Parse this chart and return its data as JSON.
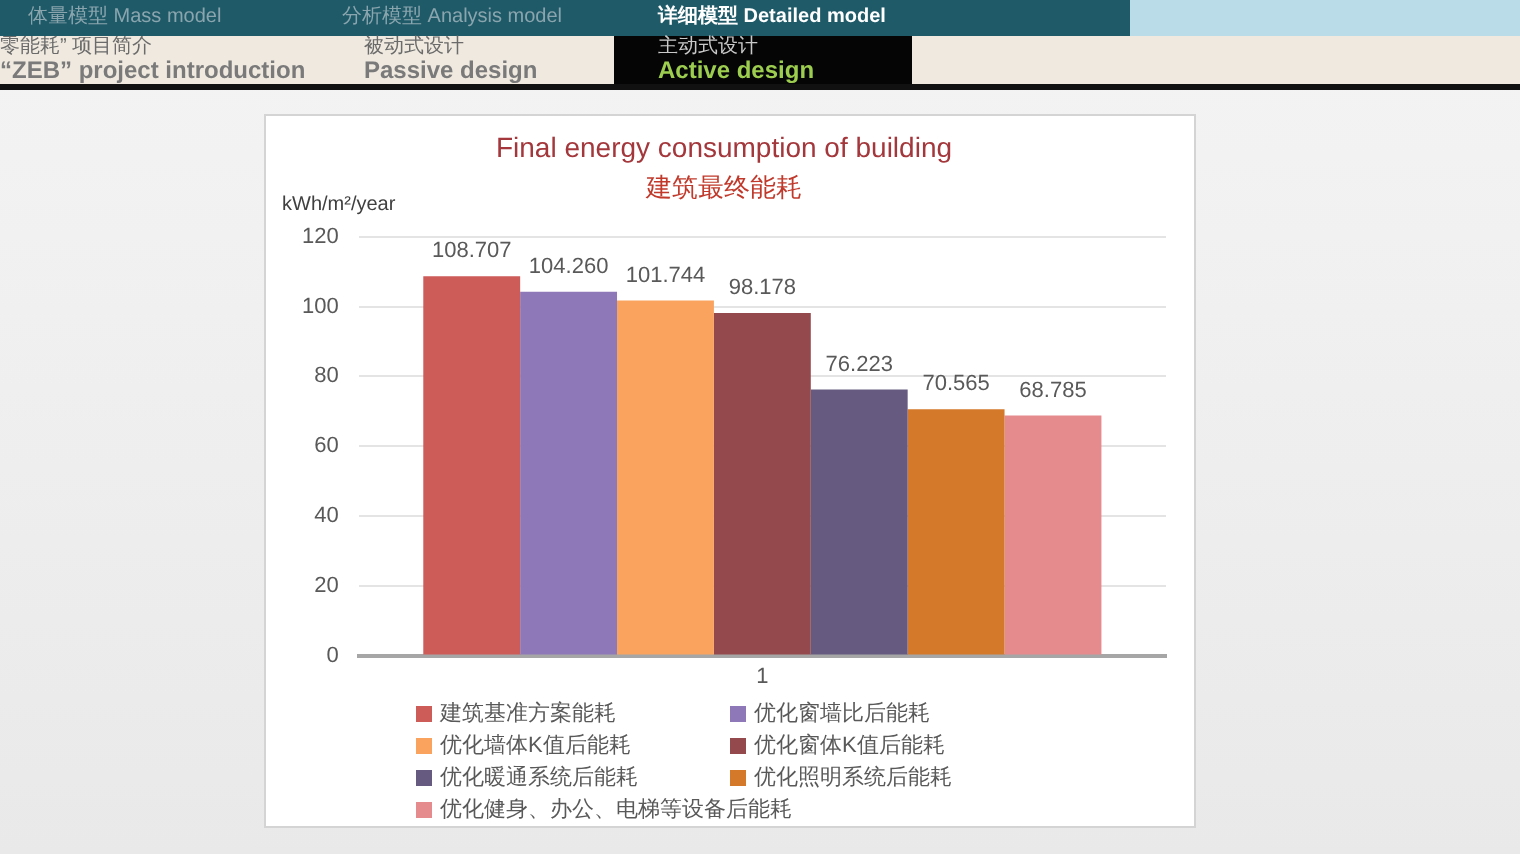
{
  "chart_data": {
    "type": "bar",
    "title": "Final energy consumption of building",
    "subtitle": "建筑最终能耗",
    "ylabel": "kWh/m²/year",
    "categories": [
      "1"
    ],
    "series": [
      {
        "name": "建筑基准方案能耗",
        "color": "#cd5b58",
        "values": [
          108.707
        ],
        "value_labels": [
          "108.707"
        ]
      },
      {
        "name": "优化窗墙比后能耗",
        "color": "#8e78b8",
        "values": [
          104.26
        ],
        "value_labels": [
          "104.260"
        ]
      },
      {
        "name": "优化墙体K值后能耗",
        "color": "#f9a35f",
        "values": [
          101.744
        ],
        "value_labels": [
          "101.744"
        ]
      },
      {
        "name": "优化窗体K值后能耗",
        "color": "#944a4c",
        "values": [
          98.178
        ],
        "value_labels": [
          "98.178"
        ]
      },
      {
        "name": "优化暖通系统后能耗",
        "color": "#675a80",
        "values": [
          76.223
        ],
        "value_labels": [
          "76.223"
        ]
      },
      {
        "name": "优化照明系统后能耗",
        "color": "#d4782a",
        "values": [
          70.565
        ],
        "value_labels": [
          "70.565"
        ]
      },
      {
        "name": "优化健身、办公、电梯等设备后能耗",
        "color": "#e58a8d",
        "values": [
          68.785
        ],
        "value_labels": [
          "68.785"
        ]
      }
    ],
    "ylim": [
      0,
      120
    ],
    "yticks": [
      0,
      20,
      40,
      60,
      80,
      100,
      120
    ],
    "grid": "y",
    "legend": "bottom",
    "annotations": [
      "体量模型 Mass model",
      "分析模型 Analysis model",
      "详细模型 Detailed model",
      "零能耗” 项目简介",
      "“ZEB” project introduction",
      "被动式设计",
      "Passive design",
      "主动式设计",
      "Active design"
    ]
  }
}
